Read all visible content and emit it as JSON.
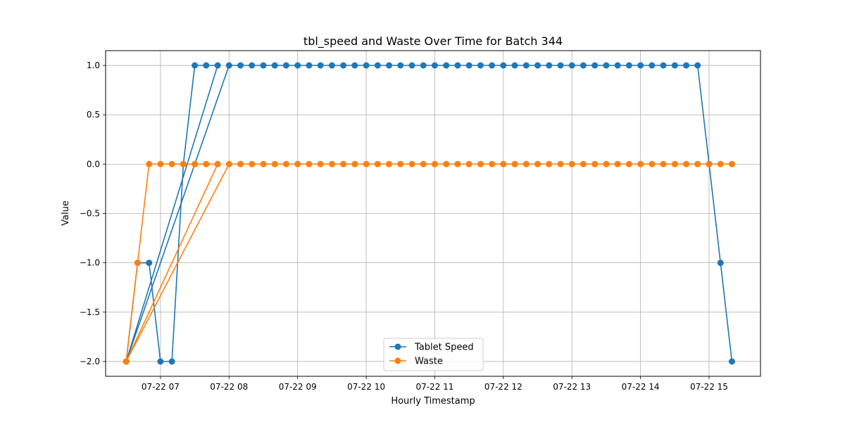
{
  "chart_data": {
    "type": "line",
    "title": "tbl_speed and Waste Over Time for Batch 344",
    "xlabel": "Hourly Timestamp",
    "ylabel": "Value",
    "xlim": [
      "2024-07-22 06:12",
      "2024-07-22 15:45"
    ],
    "ylim": [
      -2.15,
      1.15
    ],
    "x_ticks": [
      "07-22 07",
      "07-22 08",
      "07-22 09",
      "07-22 10",
      "07-22 11",
      "07-22 12",
      "07-22 13",
      "07-22 14",
      "07-22 15"
    ],
    "y_ticks": [
      "1.0",
      "0.5",
      "0.0",
      "−0.5",
      "−1.0",
      "−1.5",
      "−2.0"
    ],
    "y_tick_values": [
      1.0,
      0.5,
      0.0,
      -0.5,
      -1.0,
      -1.5,
      -2.0
    ],
    "grid": true,
    "legend_position": "bottom-center",
    "series": [
      {
        "name": "Tablet Speed",
        "color": "#1f77b4",
        "points": [
          [
            "2024-07-22 06:30",
            -2
          ],
          [
            "2024-07-22 06:40",
            -1
          ],
          [
            "2024-07-22 06:50",
            -1
          ],
          [
            "2024-07-22 07:00",
            -2
          ],
          [
            "2024-07-22 07:10",
            -2
          ],
          [
            "2024-07-22 07:20",
            0
          ],
          [
            "2024-07-22 07:30",
            1
          ],
          [
            "2024-07-22 07:40",
            1
          ],
          [
            "2024-07-22 07:50",
            1
          ],
          [
            "2024-07-22 06:30",
            -2
          ],
          [
            "2024-07-22 08:00",
            1
          ],
          [
            "2024-07-22 08:10",
            1
          ],
          [
            "2024-07-22 08:20",
            1
          ],
          [
            "2024-07-22 08:30",
            1
          ],
          [
            "2024-07-22 08:40",
            1
          ],
          [
            "2024-07-22 08:50",
            1
          ],
          [
            "2024-07-22 09:00",
            1
          ],
          [
            "2024-07-22 09:10",
            1
          ],
          [
            "2024-07-22 09:20",
            1
          ],
          [
            "2024-07-22 09:30",
            1
          ],
          [
            "2024-07-22 09:40",
            1
          ],
          [
            "2024-07-22 09:50",
            1
          ],
          [
            "2024-07-22 10:00",
            1
          ],
          [
            "2024-07-22 10:10",
            1
          ],
          [
            "2024-07-22 10:20",
            1
          ],
          [
            "2024-07-22 10:30",
            1
          ],
          [
            "2024-07-22 10:40",
            1
          ],
          [
            "2024-07-22 10:50",
            1
          ],
          [
            "2024-07-22 11:00",
            1
          ],
          [
            "2024-07-22 11:10",
            1
          ],
          [
            "2024-07-22 11:20",
            1
          ],
          [
            "2024-07-22 11:30",
            1
          ],
          [
            "2024-07-22 11:40",
            1
          ],
          [
            "2024-07-22 11:50",
            1
          ],
          [
            "2024-07-22 12:00",
            1
          ],
          [
            "2024-07-22 12:10",
            1
          ],
          [
            "2024-07-22 12:20",
            1
          ],
          [
            "2024-07-22 12:30",
            1
          ],
          [
            "2024-07-22 12:40",
            1
          ],
          [
            "2024-07-22 12:50",
            1
          ],
          [
            "2024-07-22 13:00",
            1
          ],
          [
            "2024-07-22 13:10",
            1
          ],
          [
            "2024-07-22 13:20",
            1
          ],
          [
            "2024-07-22 13:30",
            1
          ],
          [
            "2024-07-22 13:40",
            1
          ],
          [
            "2024-07-22 13:50",
            1
          ],
          [
            "2024-07-22 14:00",
            1
          ],
          [
            "2024-07-22 14:10",
            1
          ],
          [
            "2024-07-22 14:20",
            1
          ],
          [
            "2024-07-22 14:30",
            1
          ],
          [
            "2024-07-22 14:40",
            1
          ],
          [
            "2024-07-22 14:50",
            1
          ],
          [
            "2024-07-22 15:00",
            0
          ],
          [
            "2024-07-22 15:10",
            -1
          ],
          [
            "2024-07-22 15:20",
            -2
          ]
        ]
      },
      {
        "name": "Waste",
        "color": "#ff7f0e",
        "points": [
          [
            "2024-07-22 06:30",
            -2
          ],
          [
            "2024-07-22 06:40",
            -1
          ],
          [
            "2024-07-22 06:50",
            0
          ],
          [
            "2024-07-22 07:00",
            0
          ],
          [
            "2024-07-22 07:10",
            0
          ],
          [
            "2024-07-22 07:20",
            0
          ],
          [
            "2024-07-22 07:30",
            0
          ],
          [
            "2024-07-22 07:40",
            0
          ],
          [
            "2024-07-22 07:50",
            0
          ],
          [
            "2024-07-22 06:30",
            -2
          ],
          [
            "2024-07-22 08:00",
            0
          ],
          [
            "2024-07-22 08:10",
            0
          ],
          [
            "2024-07-22 08:20",
            0
          ],
          [
            "2024-07-22 08:30",
            0
          ],
          [
            "2024-07-22 08:40",
            0
          ],
          [
            "2024-07-22 08:50",
            0
          ],
          [
            "2024-07-22 09:00",
            0
          ],
          [
            "2024-07-22 09:10",
            0
          ],
          [
            "2024-07-22 09:20",
            0
          ],
          [
            "2024-07-22 09:30",
            0
          ],
          [
            "2024-07-22 09:40",
            0
          ],
          [
            "2024-07-22 09:50",
            0
          ],
          [
            "2024-07-22 10:00",
            0
          ],
          [
            "2024-07-22 10:10",
            0
          ],
          [
            "2024-07-22 10:20",
            0
          ],
          [
            "2024-07-22 10:30",
            0
          ],
          [
            "2024-07-22 10:40",
            0
          ],
          [
            "2024-07-22 10:50",
            0
          ],
          [
            "2024-07-22 11:00",
            0
          ],
          [
            "2024-07-22 11:10",
            0
          ],
          [
            "2024-07-22 11:20",
            0
          ],
          [
            "2024-07-22 11:30",
            0
          ],
          [
            "2024-07-22 11:40",
            0
          ],
          [
            "2024-07-22 11:50",
            0
          ],
          [
            "2024-07-22 12:00",
            0
          ],
          [
            "2024-07-22 12:10",
            0
          ],
          [
            "2024-07-22 12:20",
            0
          ],
          [
            "2024-07-22 12:30",
            0
          ],
          [
            "2024-07-22 12:40",
            0
          ],
          [
            "2024-07-22 12:50",
            0
          ],
          [
            "2024-07-22 13:00",
            0
          ],
          [
            "2024-07-22 13:10",
            0
          ],
          [
            "2024-07-22 13:20",
            0
          ],
          [
            "2024-07-22 13:30",
            0
          ],
          [
            "2024-07-22 13:40",
            0
          ],
          [
            "2024-07-22 13:50",
            0
          ],
          [
            "2024-07-22 14:00",
            0
          ],
          [
            "2024-07-22 14:10",
            0
          ],
          [
            "2024-07-22 14:20",
            0
          ],
          [
            "2024-07-22 14:30",
            0
          ],
          [
            "2024-07-22 14:40",
            0
          ],
          [
            "2024-07-22 14:50",
            0
          ],
          [
            "2024-07-22 15:00",
            0
          ],
          [
            "2024-07-22 15:10",
            0
          ],
          [
            "2024-07-22 15:20",
            0
          ]
        ]
      }
    ]
  }
}
